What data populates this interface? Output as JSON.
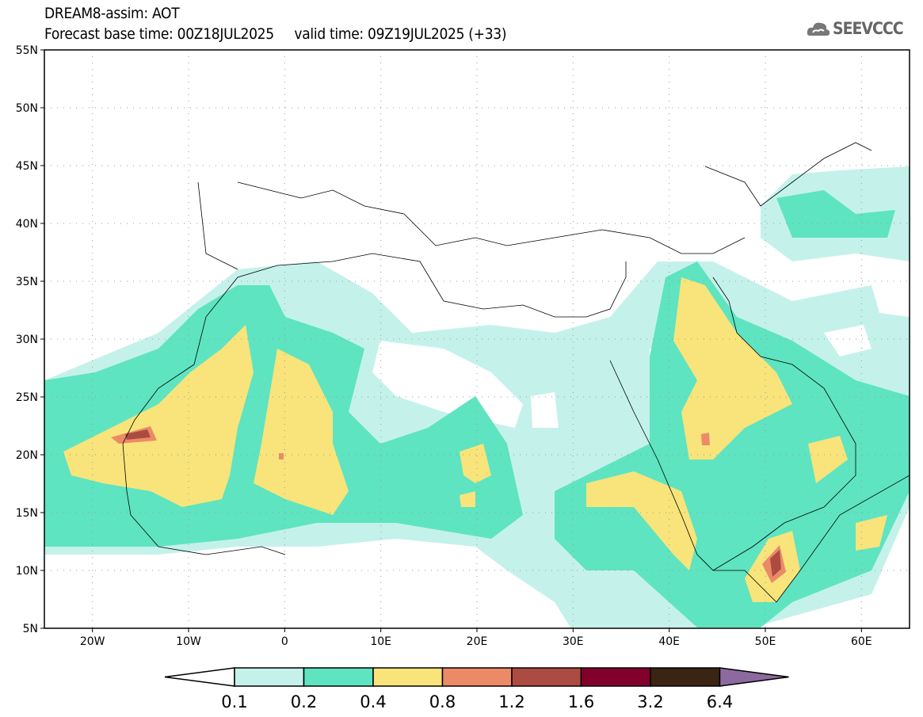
{
  "header": {
    "title": "DREAM8-assim: AOT",
    "subtitle": "Forecast base time: 00Z18JUL2025     valid time: 09Z19JUL2025 (+33)",
    "logo_text": "SEEVCCC"
  },
  "map": {
    "lon_range": [
      -25,
      65
    ],
    "lat_range": [
      5,
      55
    ],
    "lat_labels": [
      {
        "v": 55,
        "t": "55N"
      },
      {
        "v": 50,
        "t": "50N"
      },
      {
        "v": 45,
        "t": "45N"
      },
      {
        "v": 40,
        "t": "40N"
      },
      {
        "v": 35,
        "t": "35N"
      },
      {
        "v": 30,
        "t": "30N"
      },
      {
        "v": 25,
        "t": "25N"
      },
      {
        "v": 20,
        "t": "20N"
      },
      {
        "v": 15,
        "t": "15N"
      },
      {
        "v": 10,
        "t": "10N"
      },
      {
        "v": 5,
        "t": "5N"
      }
    ],
    "lon_labels": [
      {
        "v": -20,
        "t": "20W"
      },
      {
        "v": -10,
        "t": "10W"
      },
      {
        "v": 0,
        "t": "0"
      },
      {
        "v": 10,
        "t": "10E"
      },
      {
        "v": 20,
        "t": "20E"
      },
      {
        "v": 30,
        "t": "30E"
      },
      {
        "v": 40,
        "t": "40E"
      },
      {
        "v": 50,
        "t": "50E"
      },
      {
        "v": 60,
        "t": "60E"
      }
    ]
  },
  "colorbar": {
    "labels": [
      "0.1",
      "0.2",
      "0.4",
      "0.8",
      "1.2",
      "1.6",
      "3.2",
      "6.4"
    ],
    "colors": [
      "#ffffff",
      "#c4f2ea",
      "#5ee4c0",
      "#f8e47a",
      "#ec8a68",
      "#ab4b42",
      "#82002c",
      "#3a2414",
      "#8c6aa0"
    ]
  }
}
